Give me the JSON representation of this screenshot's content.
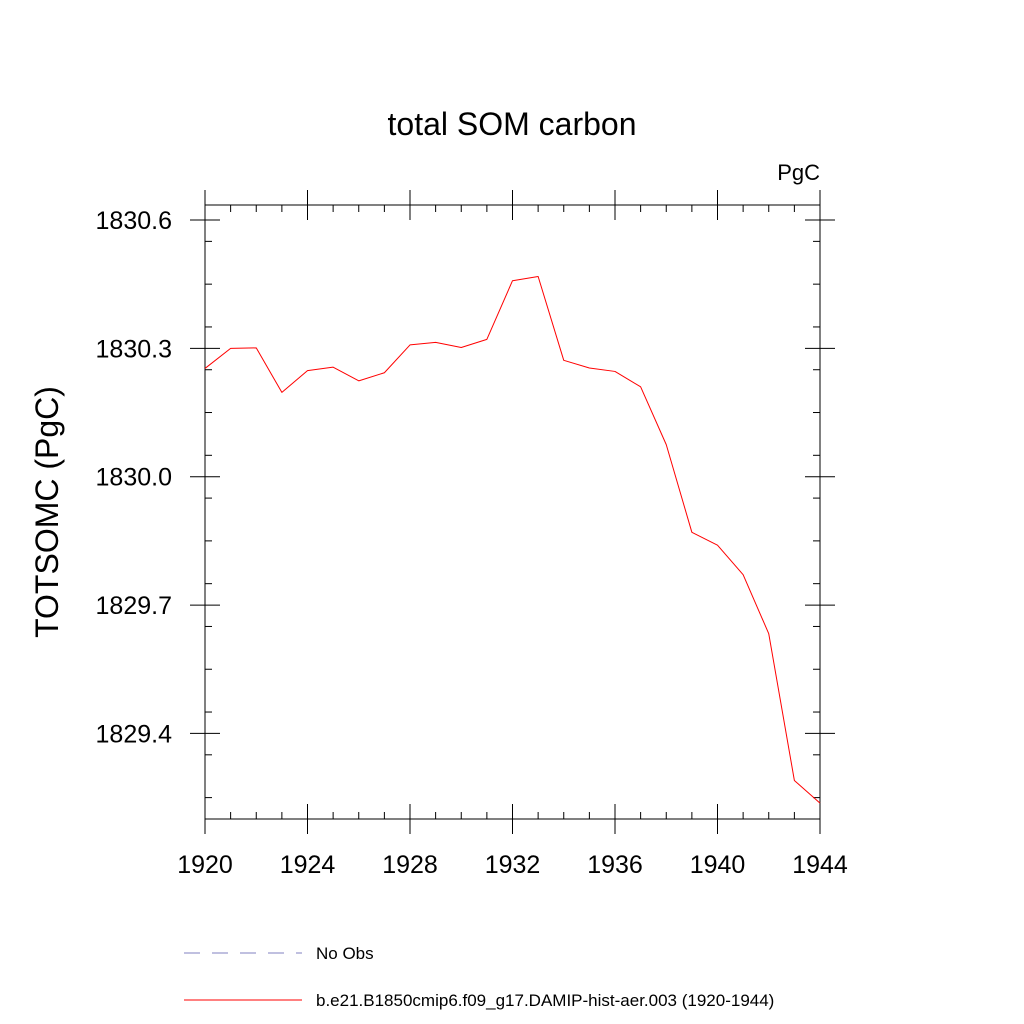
{
  "chart_data": {
    "type": "line",
    "title": "total SOM carbon",
    "units_label": "PgC",
    "ylabel": "TOTSOMC  (PgC)",
    "xlabel": "",
    "xlim": [
      1920,
      1944
    ],
    "ylim": [
      1829.2,
      1830.635
    ],
    "x_major_ticks": [
      1920,
      1924,
      1928,
      1932,
      1936,
      1940,
      1944
    ],
    "x_tick_labels": [
      "1920",
      "1924",
      "1928",
      "1932",
      "1936",
      "1940",
      "1944"
    ],
    "y_major_ticks": [
      1829.4,
      1829.7,
      1830.0,
      1830.3,
      1830.6
    ],
    "y_tick_labels": [
      "1829.4",
      "1829.7",
      "1830.0",
      "1830.3",
      "1830.6"
    ],
    "grid": false,
    "legend_position": "bottom",
    "series": [
      {
        "name": "b.e21.B1850cmip6.f09_g17.DAMIP-hist-aer.003 (1920-1944)",
        "color": "#ff0000",
        "dash": "solid",
        "x": [
          1920,
          1921,
          1922,
          1923,
          1924,
          1925,
          1926,
          1927,
          1928,
          1929,
          1930,
          1931,
          1932,
          1933,
          1934,
          1935,
          1936,
          1937,
          1938,
          1939,
          1940,
          1941,
          1942,
          1943,
          1944
        ],
        "y": [
          1830.253,
          1830.3,
          1830.301,
          1830.197,
          1830.248,
          1830.256,
          1830.224,
          1830.243,
          1830.308,
          1830.314,
          1830.302,
          1830.321,
          1830.458,
          1830.468,
          1830.272,
          1830.254,
          1830.246,
          1830.21,
          1830.075,
          1829.87,
          1829.84,
          1829.771,
          1829.633,
          1829.29,
          1829.237
        ]
      },
      {
        "name": "No Obs",
        "color": "#8080c0",
        "dash": "dashed",
        "x": [],
        "y": []
      }
    ]
  }
}
